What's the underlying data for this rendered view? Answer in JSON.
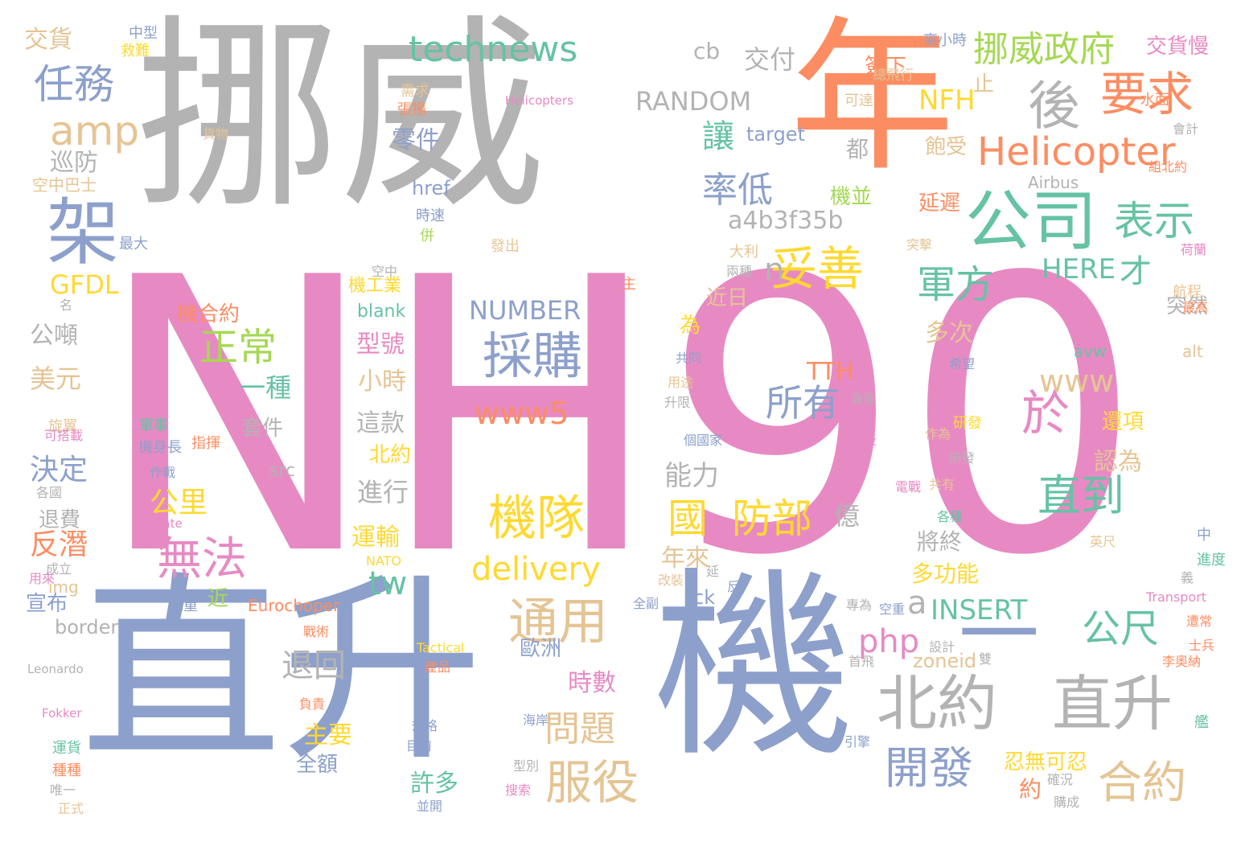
{
  "palette": {
    "gray": "#b3b3b3",
    "orange": "#fc8d62",
    "pink": "#e78ac3",
    "blue": "#8da0cb",
    "green": "#66c2a5",
    "lime": "#a6d854",
    "yellow": "#ffd92f",
    "tan": "#e5c494"
  },
  "words": [
    {
      "text": "NH90",
      "color": "pink"
    },
    {
      "text": "挪威",
      "color": "gray"
    },
    {
      "text": "年",
      "color": "orange"
    },
    {
      "text": "直升",
      "color": "blue"
    },
    {
      "text": "機",
      "color": "blue"
    },
    {
      "text": "架",
      "color": "blue"
    },
    {
      "text": "公司",
      "color": "green"
    },
    {
      "text": "後",
      "color": "gray"
    },
    {
      "text": "要求",
      "color": "orange"
    },
    {
      "text": "挪威政府",
      "color": "lime"
    },
    {
      "text": "Helicopter",
      "color": "orange"
    },
    {
      "text": "任務",
      "color": "blue"
    },
    {
      "text": "amp",
      "color": "tan"
    },
    {
      "text": "technews",
      "color": "green"
    },
    {
      "text": "cb",
      "color": "gray"
    },
    {
      "text": "交付",
      "color": "gray"
    },
    {
      "text": "RANDOM",
      "color": "gray"
    },
    {
      "text": "NFH",
      "color": "yellow"
    },
    {
      "text": "交貨",
      "color": "tan"
    },
    {
      "text": "交貨慢",
      "color": "pink"
    },
    {
      "text": "妥善",
      "color": "yellow"
    },
    {
      "text": "表示",
      "color": "green"
    },
    {
      "text": "軍方",
      "color": "green"
    },
    {
      "text": "才",
      "color": "green"
    },
    {
      "text": "HERE",
      "color": "green"
    },
    {
      "text": "率低",
      "color": "blue"
    },
    {
      "text": "讓",
      "color": "green"
    },
    {
      "text": "a4b3f35b",
      "color": "gray"
    },
    {
      "text": "n",
      "color": "gray"
    },
    {
      "text": "正常",
      "color": "lime"
    },
    {
      "text": "採購",
      "color": "blue"
    },
    {
      "text": "GFDL",
      "color": "yellow"
    },
    {
      "text": "巡防",
      "color": "gray"
    },
    {
      "text": "於",
      "color": "pink"
    },
    {
      "text": "www",
      "color": "tan"
    },
    {
      "text": "www5",
      "color": "orange"
    },
    {
      "text": "所有",
      "color": "blue"
    },
    {
      "text": "直到",
      "color": "green"
    },
    {
      "text": "機隊",
      "color": "yellow"
    },
    {
      "text": "國",
      "color": "yellow"
    },
    {
      "text": "防部",
      "color": "yellow"
    },
    {
      "text": "NUMBER",
      "color": "blue"
    },
    {
      "text": "無法",
      "color": "pink"
    },
    {
      "text": "delivery",
      "color": "yellow"
    },
    {
      "text": "tw",
      "color": "green"
    },
    {
      "text": "通用",
      "color": "tan"
    },
    {
      "text": "公尺",
      "color": "green"
    },
    {
      "text": "北約",
      "color": "gray"
    },
    {
      "text": "直升",
      "color": "gray"
    },
    {
      "text": "合約",
      "color": "tan"
    },
    {
      "text": "開發",
      "color": "blue"
    },
    {
      "text": "服役",
      "color": "tan"
    },
    {
      "text": "問題",
      "color": "tan"
    },
    {
      "text": "退回",
      "color": "gray"
    },
    {
      "text": "php",
      "color": "pink"
    },
    {
      "text": "INSERT",
      "color": "green"
    },
    {
      "text": "a",
      "color": "gray"
    },
    {
      "text": "一",
      "color": "blue"
    },
    {
      "text": "一種",
      "color": "green"
    },
    {
      "text": "公里",
      "color": "yellow"
    },
    {
      "text": "反潛",
      "color": "orange"
    },
    {
      "text": "決定",
      "color": "blue"
    },
    {
      "text": "美元",
      "color": "tan"
    },
    {
      "text": "公噸",
      "color": "gray"
    },
    {
      "text": "主要",
      "color": "yellow"
    },
    {
      "text": "許多",
      "color": "green"
    },
    {
      "text": "時數",
      "color": "pink"
    },
    {
      "text": "零件",
      "color": "blue"
    },
    {
      "text": "型號",
      "color": "pink"
    },
    {
      "text": "小時",
      "color": "tan"
    },
    {
      "text": "這款",
      "color": "gray"
    },
    {
      "text": "北約",
      "color": "yellow"
    },
    {
      "text": "進行",
      "color": "gray"
    },
    {
      "text": "運輸",
      "color": "yellow"
    },
    {
      "text": "能力",
      "color": "gray"
    },
    {
      "text": "年來",
      "color": "tan"
    },
    {
      "text": "億",
      "color": "gray"
    },
    {
      "text": "多次",
      "color": "tan"
    },
    {
      "text": "TTH",
      "color": "orange"
    },
    {
      "text": "認為",
      "color": "tan"
    },
    {
      "text": "還項",
      "color": "yellow"
    },
    {
      "text": "將終",
      "color": "gray"
    },
    {
      "text": "多功能",
      "color": "yellow"
    },
    {
      "text": "約",
      "color": "orange"
    },
    {
      "text": "忍無可忍",
      "color": "yellow"
    },
    {
      "text": "zoneid",
      "color": "tan"
    },
    {
      "text": "突然",
      "color": "gray"
    },
    {
      "text": "機並",
      "color": "lime"
    },
    {
      "text": "延遲",
      "color": "orange"
    },
    {
      "text": "都",
      "color": "gray"
    },
    {
      "text": "飽受",
      "color": "tan"
    },
    {
      "text": "target",
      "color": "blue"
    },
    {
      "text": "止",
      "color": "tan"
    },
    {
      "text": "href",
      "color": "blue"
    },
    {
      "text": "blank",
      "color": "green"
    },
    {
      "text": "機工業",
      "color": "yellow"
    },
    {
      "text": "近日",
      "color": "tan"
    },
    {
      "text": "為",
      "color": "yellow"
    },
    {
      "text": "機合約",
      "color": "orange"
    },
    {
      "text": "套件",
      "color": "gray"
    },
    {
      "text": "src",
      "color": "gray"
    },
    {
      "text": "退費",
      "color": "gray"
    },
    {
      "text": "img",
      "color": "tan"
    },
    {
      "text": "宣布",
      "color": "blue"
    },
    {
      "text": "border",
      "color": "gray"
    },
    {
      "text": "ck",
      "color": "blue"
    },
    {
      "text": "近",
      "color": "lime"
    },
    {
      "text": "Eurochoper",
      "color": "orange"
    },
    {
      "text": "歐洲",
      "color": "blue"
    },
    {
      "text": "全額",
      "color": "blue"
    },
    {
      "text": "avw",
      "color": "green"
    },
    {
      "text": "alt",
      "color": "tan"
    },
    {
      "text": "空中巴士",
      "color": "tan"
    },
    {
      "text": "中型",
      "color": "blue"
    },
    {
      "text": "救難",
      "color": "yellow"
    },
    {
      "text": "簽下",
      "color": "orange"
    },
    {
      "text": "高小時",
      "color": "blue"
    },
    {
      "text": "總飛行",
      "color": "tan"
    },
    {
      "text": "需求",
      "color": "tan"
    },
    {
      "text": "張揚",
      "color": "orange"
    },
    {
      "text": "Helicopters",
      "color": "pink"
    },
    {
      "text": "可達",
      "color": "tan"
    },
    {
      "text": "水面",
      "color": "orange"
    },
    {
      "text": "貨物",
      "color": "tan"
    },
    {
      "text": "Airbus",
      "color": "gray"
    },
    {
      "text": "組北約",
      "color": "orange"
    },
    {
      "text": "會計",
      "color": "gray"
    },
    {
      "text": "時速",
      "color": "blue"
    },
    {
      "text": "併",
      "color": "lime"
    },
    {
      "text": "最大",
      "color": "blue"
    },
    {
      "text": "發出",
      "color": "tan"
    },
    {
      "text": "大利",
      "color": "tan"
    },
    {
      "text": "突擊",
      "color": "tan"
    },
    {
      "text": "兩種",
      "color": "gray"
    },
    {
      "text": "荷蘭",
      "color": "pink"
    },
    {
      "text": "空中",
      "color": "gray"
    },
    {
      "text": "主",
      "color": "orange"
    },
    {
      "text": "名",
      "color": "gray"
    },
    {
      "text": "航程",
      "color": "tan"
    },
    {
      "text": "最高",
      "color": "orange"
    },
    {
      "text": "共同",
      "color": "blue"
    },
    {
      "text": "希望",
      "color": "blue"
    },
    {
      "text": "用途",
      "color": "tan"
    },
    {
      "text": "升限",
      "color": "gray"
    },
    {
      "text": "直徑",
      "color": "gray"
    },
    {
      "text": "旋翼",
      "color": "tan"
    },
    {
      "text": "軍事",
      "color": "green"
    },
    {
      "text": "機身長",
      "color": "blue"
    },
    {
      "text": "指揮",
      "color": "orange"
    },
    {
      "text": "可搭載",
      "color": "pink"
    },
    {
      "text": "研發",
      "color": "yellow"
    },
    {
      "text": "作為",
      "color": "tan"
    },
    {
      "text": "個國家",
      "color": "blue"
    },
    {
      "text": "機板",
      "color": "pink"
    },
    {
      "text": "研發",
      "color": "gray"
    },
    {
      "text": "電戰",
      "color": "pink"
    },
    {
      "text": "作戰",
      "color": "blue"
    },
    {
      "text": "各國",
      "color": "gray"
    },
    {
      "text": "Frigate",
      "color": "pink"
    },
    {
      "text": "共有",
      "color": "tan"
    },
    {
      "text": "各種",
      "color": "green"
    },
    {
      "text": "中",
      "color": "blue"
    },
    {
      "text": "英尺",
      "color": "tan"
    },
    {
      "text": "NATO",
      "color": "yellow"
    },
    {
      "text": "成立",
      "color": "gray"
    },
    {
      "text": "進度",
      "color": "green"
    },
    {
      "text": "用來",
      "color": "pink"
    },
    {
      "text": "延",
      "color": "gray"
    },
    {
      "text": "改裝",
      "color": "tan"
    },
    {
      "text": "反",
      "color": "blue"
    },
    {
      "text": "義",
      "color": "gray"
    },
    {
      "text": "Transport",
      "color": "pink"
    },
    {
      "text": "總重",
      "color": "blue"
    },
    {
      "text": "全副",
      "color": "blue"
    },
    {
      "text": "專為",
      "color": "gray"
    },
    {
      "text": "空重",
      "color": "blue"
    },
    {
      "text": "遭常",
      "color": "orange"
    },
    {
      "text": "戰術",
      "color": "orange"
    },
    {
      "text": "設計",
      "color": "gray"
    },
    {
      "text": "首飛",
      "color": "gray"
    },
    {
      "text": "雙",
      "color": "gray"
    },
    {
      "text": "李奧納",
      "color": "orange"
    },
    {
      "text": "士兵",
      "color": "orange"
    },
    {
      "text": "Leonardo",
      "color": "gray"
    },
    {
      "text": "Tactical",
      "color": "yellow"
    },
    {
      "text": "產品",
      "color": "orange"
    },
    {
      "text": "Fokker",
      "color": "pink"
    },
    {
      "text": "負責",
      "color": "orange"
    },
    {
      "text": "規格",
      "color": "blue"
    },
    {
      "text": "海岸",
      "color": "blue"
    },
    {
      "text": "目前",
      "color": "blue"
    },
    {
      "text": "引擎",
      "color": "blue"
    },
    {
      "text": "艦",
      "color": "green"
    },
    {
      "text": "運貨",
      "color": "green"
    },
    {
      "text": "種種",
      "color": "orange"
    },
    {
      "text": "唯一",
      "color": "gray"
    },
    {
      "text": "正式",
      "color": "tan"
    },
    {
      "text": "型別",
      "color": "gray"
    },
    {
      "text": "搜索",
      "color": "pink"
    },
    {
      "text": "並開",
      "color": "blue"
    },
    {
      "text": "購成",
      "color": "gray"
    },
    {
      "text": "確況",
      "color": "gray"
    }
  ]
}
